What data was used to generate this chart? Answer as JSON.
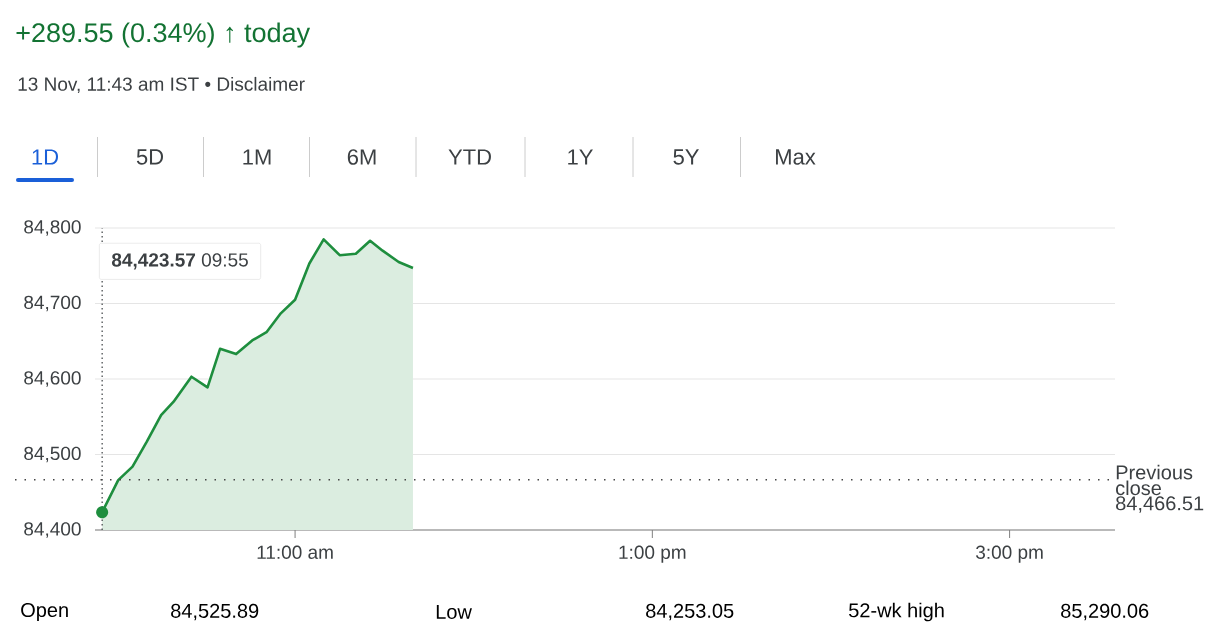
{
  "chart_data": {
    "type": "area",
    "title": "+289.55 (0.34%) ↑ today",
    "subtitle": "13 Nov, 11:43 am IST • Disclaimer",
    "x": [
      9.92,
      10.01,
      10.09,
      10.17,
      10.25,
      10.32,
      10.42,
      10.51,
      10.58,
      10.67,
      10.76,
      10.84,
      10.92,
      11.0,
      11.08,
      11.16,
      11.25,
      11.34,
      11.42,
      11.49,
      11.58,
      11.66
    ],
    "values": [
      84423.57,
      84466,
      84484,
      84517,
      84552,
      84570,
      84603,
      84589,
      84640,
      84633,
      84651,
      84662,
      84687,
      84705,
      84753,
      84785,
      84764,
      84766,
      84783,
      84770,
      84755,
      84747
    ],
    "color": "#1e8e3e",
    "xlim": [
      9.88,
      15.59
    ],
    "xticks": [
      {
        "value": 11,
        "label": "11:00 am"
      },
      {
        "value": 13,
        "label": "1:00 pm"
      },
      {
        "value": 15,
        "label": "3:00 pm"
      }
    ],
    "ylim": [
      84400,
      84800
    ],
    "yticks": [
      {
        "value": 84400,
        "label": "84,400"
      },
      {
        "value": 84500,
        "label": "84,500"
      },
      {
        "value": 84600,
        "label": "84,600"
      },
      {
        "value": 84700,
        "label": "84,700"
      },
      {
        "value": 84800,
        "label": "84,800"
      }
    ],
    "grid": "y",
    "marker": "none",
    "line_style": "solid",
    "ref_lines": [
      {
        "axis": "x",
        "value": 9.92,
        "line_style": "dotted",
        "color": "#3c4043"
      },
      {
        "axis": "y",
        "value": 84466.51,
        "label": "Previous close 84,466.51",
        "line_style": "dotted",
        "color": "#444444"
      }
    ],
    "annotations": [
      "**84,423.57** 09:55",
      "1D",
      "5D",
      "1M",
      "6M",
      "YTD",
      "1Y",
      "5Y",
      "Max",
      "Open",
      "84,525.89",
      "Low",
      "84,253.05",
      "52-wk high",
      "85,290.06"
    ]
  }
}
